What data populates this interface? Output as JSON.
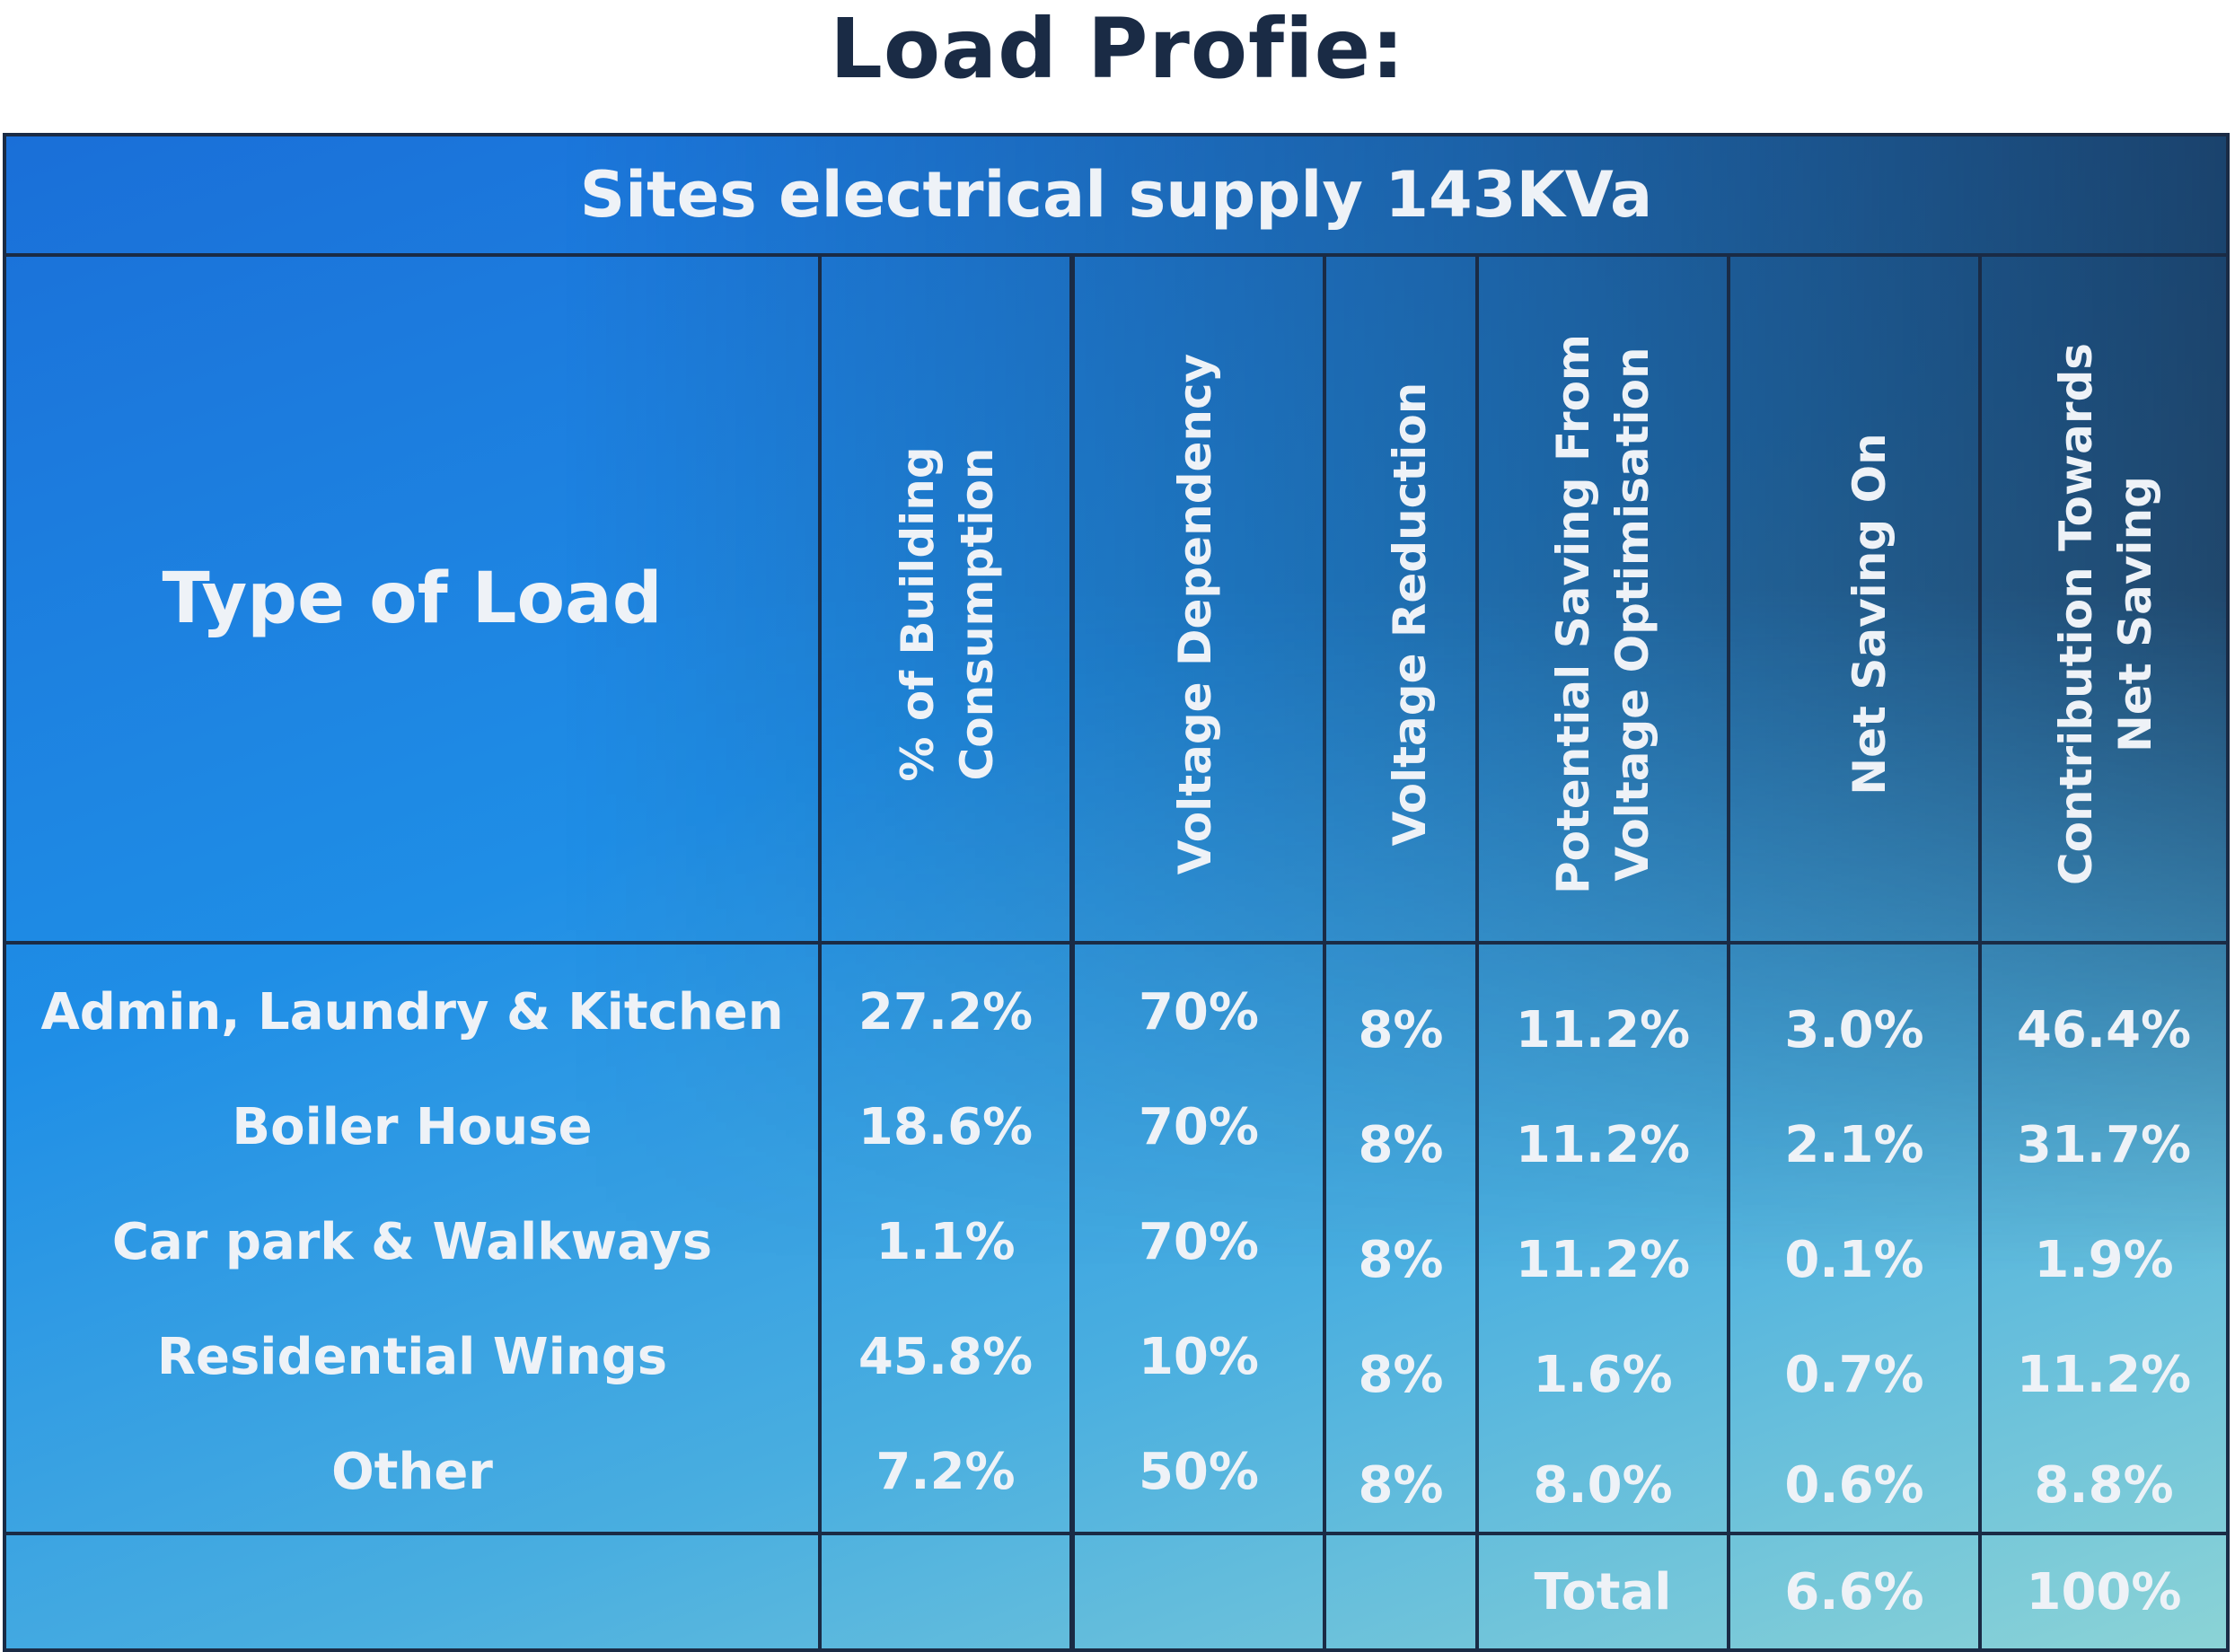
{
  "page_title": "Load Profie:",
  "table": {
    "title": "Sites electrical supply 143KVa",
    "row_header": "Type of Load",
    "columns": [
      [
        "% of Building",
        "Consumption"
      ],
      [
        "Voltage Dependency"
      ],
      [
        "Voltage Reduction"
      ],
      [
        "Potential Saving From",
        "Voltage Optimisation"
      ],
      [
        "Net Saving On"
      ],
      [
        "Contribution Towards",
        "Net Saving"
      ]
    ],
    "rows": [
      {
        "label": "Admin, Laundry & Kitchen",
        "values": [
          "27.2%",
          "70%",
          "8%",
          "11.2%",
          "3.0%",
          "46.4%"
        ]
      },
      {
        "label": "Boiler House",
        "values": [
          "18.6%",
          "70%",
          "8%",
          "11.2%",
          "2.1%",
          "31.7%"
        ]
      },
      {
        "label": "Car park & Walkways",
        "values": [
          "1.1%",
          "70%",
          "8%",
          "11.2%",
          "0.1%",
          "1.9%"
        ]
      },
      {
        "label": "Residential Wings",
        "values": [
          "45.8%",
          "10%",
          "8%",
          "1.6%",
          "0.7%",
          "11.2%"
        ]
      },
      {
        "label": "Other",
        "values": [
          "7.2%",
          "50%",
          "8%",
          "8.0%",
          "0.6%",
          "8.8%"
        ]
      }
    ],
    "total": {
      "label": "Total",
      "net_saving": "6.6%",
      "contribution": "100%"
    }
  },
  "colors": {
    "title_text": "#1a2b45",
    "grid_lines": "#1a2b45",
    "cell_text": "#eef2f7",
    "gradient_start": "#1a6fd8",
    "gradient_end": "#8bd3d6"
  }
}
